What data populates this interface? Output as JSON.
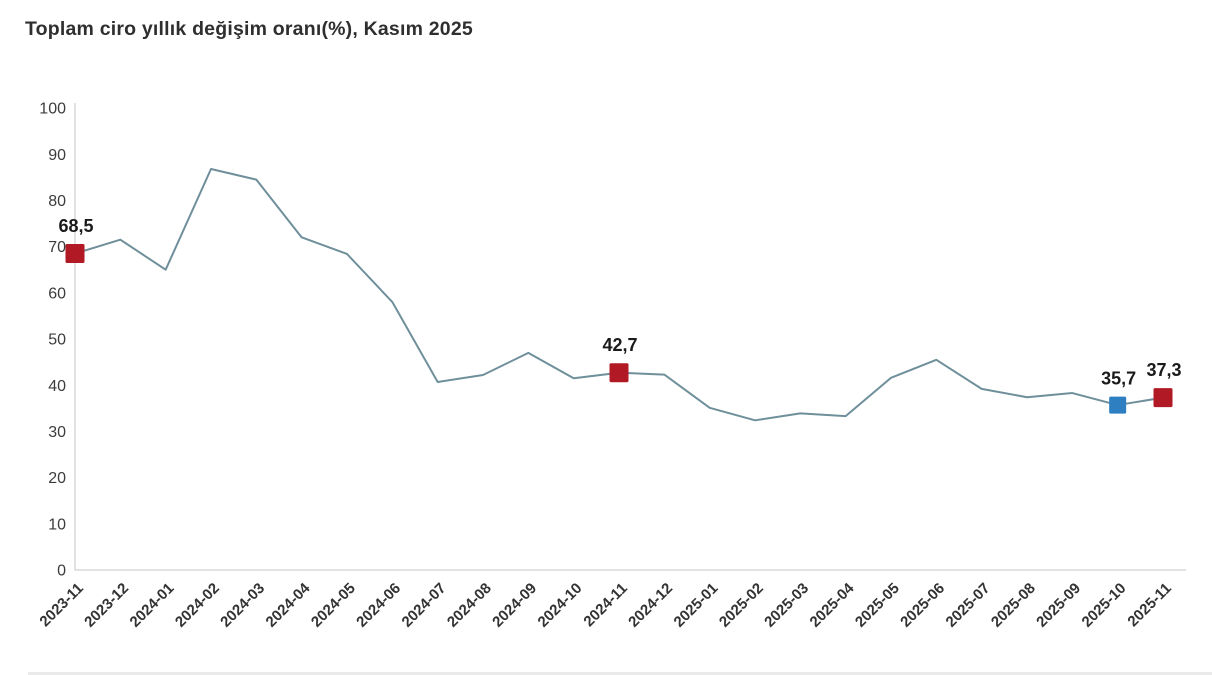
{
  "title": "Toplam ciro yıllık değişim oranı(%), Kasım 2025",
  "colors": {
    "line": "#6f8f9b",
    "axis": "#d8d8d8",
    "marker_red": "#b11a25",
    "marker_blue": "#2e7fc2",
    "title_text": "#2f2f2f",
    "tick_text": "#3c3c3c",
    "value_label_text": "#1a1a1a"
  },
  "chart_data": {
    "type": "line",
    "title": "Toplam ciro yıllık değişim oranı(%), Kasım 2025",
    "xlabel": "",
    "ylabel": "",
    "ylim": [
      0,
      100
    ],
    "yticks": [
      0,
      10,
      20,
      30,
      40,
      50,
      60,
      70,
      80,
      90,
      100
    ],
    "grid": false,
    "legend": "none",
    "x": [
      "2023-11",
      "2023-12",
      "2024-01",
      "2024-02",
      "2024-03",
      "2024-04",
      "2024-05",
      "2024-06",
      "2024-07",
      "2024-08",
      "2024-09",
      "2024-10",
      "2024-11",
      "2024-12",
      "2025-01",
      "2025-02",
      "2025-03",
      "2025-04",
      "2025-05",
      "2025-06",
      "2025-07",
      "2025-08",
      "2025-09",
      "2025-10",
      "2025-11"
    ],
    "series": [
      {
        "name": "Toplam ciro yıllık değişim oranı (%)",
        "values": [
          68.5,
          71.5,
          65.0,
          86.8,
          84.5,
          72.0,
          68.4,
          58.0,
          40.7,
          42.2,
          47.0,
          41.5,
          42.7,
          42.3,
          35.1,
          32.4,
          33.9,
          33.3,
          41.6,
          45.5,
          39.2,
          37.4,
          38.3,
          35.7,
          37.3
        ]
      }
    ],
    "annotated_points": [
      {
        "x": "2023-11",
        "value": 68.5,
        "label": "68,5",
        "marker_color": "#b11a25",
        "marker_size": 19
      },
      {
        "x": "2024-11",
        "value": 42.7,
        "label": "42,7",
        "marker_color": "#b11a25",
        "marker_size": 19
      },
      {
        "x": "2025-10",
        "value": 35.7,
        "label": "35,7",
        "marker_color": "#2e7fc2",
        "marker_size": 17
      },
      {
        "x": "2025-11",
        "value": 37.3,
        "label": "37,3",
        "marker_color": "#b11a25",
        "marker_size": 19
      }
    ]
  }
}
